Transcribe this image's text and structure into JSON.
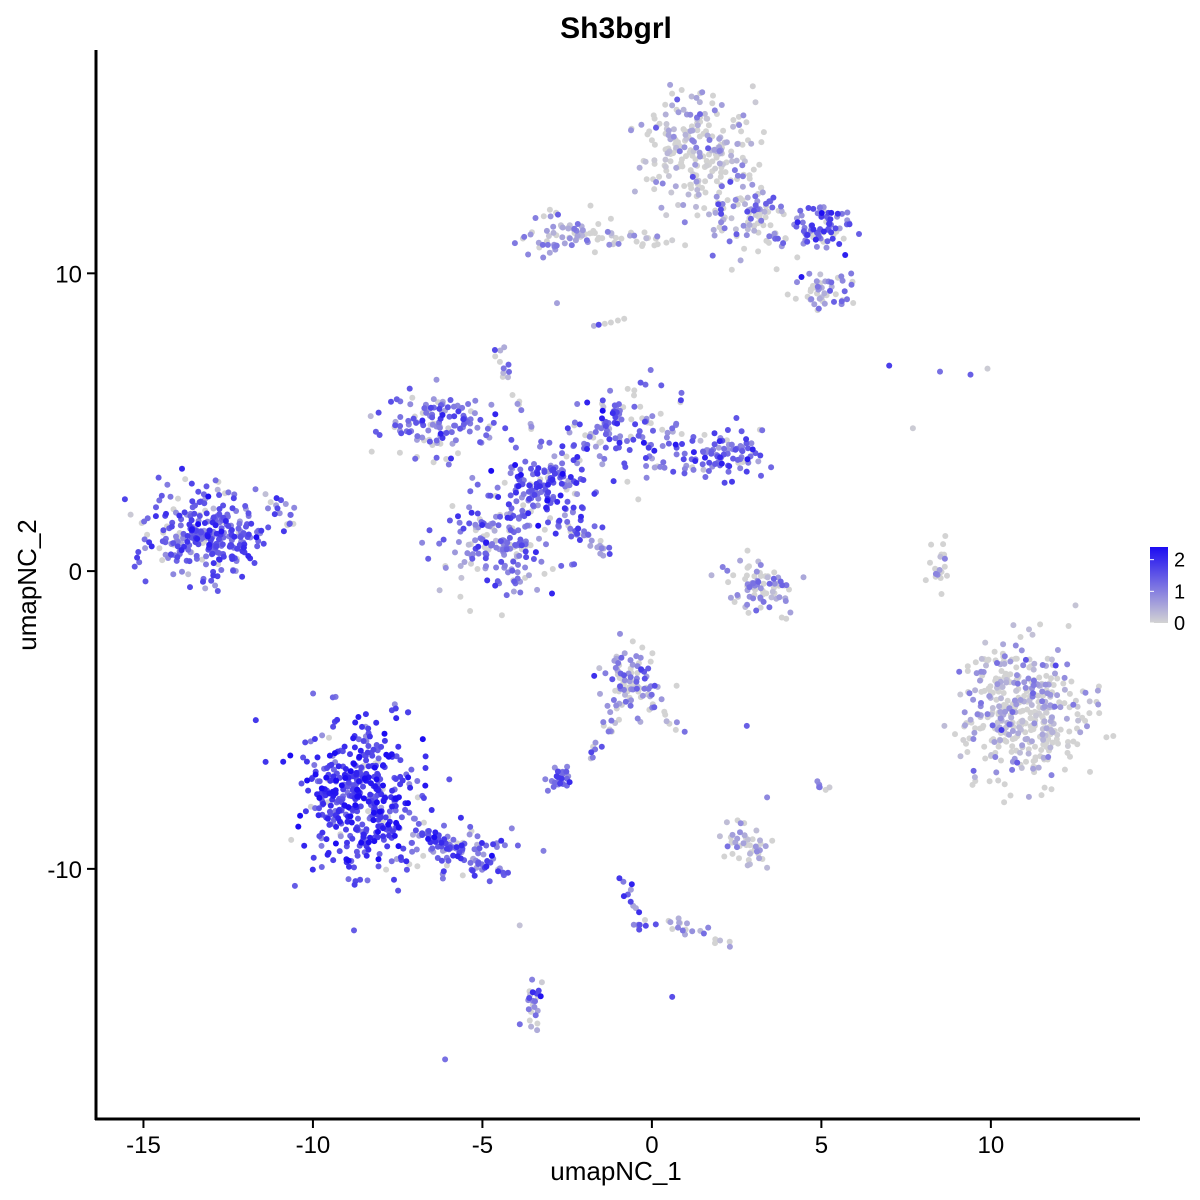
{
  "chart_data": {
    "type": "scatter",
    "title": "Sh3bgrl",
    "xlabel": "umapNC_1",
    "ylabel": "umapNC_2",
    "xlim": [
      -16.4,
      14.4
    ],
    "ylim": [
      -18.4,
      17.5
    ],
    "x_ticks": [
      -15,
      -10,
      -5,
      0,
      5,
      10
    ],
    "x_tick_labels": [
      "-15",
      "-10",
      "-5",
      "0",
      "5",
      "10"
    ],
    "y_ticks": [
      -10,
      0,
      10
    ],
    "y_tick_labels": [
      "-10",
      "0",
      "10"
    ],
    "grid": false,
    "color_scale": {
      "low_color": "#d3d3d3",
      "high_color": "#1c0cf2",
      "min": 0,
      "max": 2.4,
      "legend_ticks": [
        2,
        1,
        0
      ],
      "legend_tick_labels": [
        "2",
        "1",
        "0"
      ],
      "legend_position": "right"
    },
    "point_color": "expression of Sh3bgrl (0 = grey, high = blue)",
    "clusters": [
      {
        "cx": -13.2,
        "cy": 1.2,
        "sx": 1.0,
        "sy": 0.8,
        "n": 300,
        "expr_mean": 1.4
      },
      {
        "cx": -8.6,
        "cy": -7.6,
        "sx": 1.0,
        "sy": 1.4,
        "n": 450,
        "expr_mean": 1.8
      },
      {
        "cx": -5.6,
        "cy": -9.4,
        "sx": 1.0,
        "sy": 0.5,
        "n": 70,
        "expr_mean": 1.3
      },
      {
        "cx": -4.4,
        "cy": 1.1,
        "sx": 1.0,
        "sy": 1.0,
        "n": 200,
        "expr_mean": 1.2
      },
      {
        "cx": -3.1,
        "cy": 2.9,
        "sx": 0.7,
        "sy": 0.8,
        "n": 120,
        "expr_mean": 1.5
      },
      {
        "cx": -6.3,
        "cy": 5.0,
        "sx": 1.0,
        "sy": 0.6,
        "n": 130,
        "expr_mean": 1.2
      },
      {
        "cx": -0.5,
        "cy": 4.6,
        "sx": 0.9,
        "sy": 0.8,
        "n": 110,
        "expr_mean": 1.2
      },
      {
        "cx": 2.0,
        "cy": 3.9,
        "sx": 0.7,
        "sy": 0.5,
        "n": 90,
        "expr_mean": 1.3
      },
      {
        "cx": 1.4,
        "cy": 14.2,
        "sx": 0.9,
        "sy": 1.1,
        "n": 230,
        "expr_mean": 0.3
      },
      {
        "cx": 3.0,
        "cy": 11.8,
        "sx": 0.9,
        "sy": 0.7,
        "n": 110,
        "expr_mean": 0.8
      },
      {
        "cx": 5.0,
        "cy": 11.6,
        "sx": 0.5,
        "sy": 0.4,
        "n": 70,
        "expr_mean": 1.4
      },
      {
        "cx": 5.2,
        "cy": 9.5,
        "sx": 0.6,
        "sy": 0.4,
        "n": 50,
        "expr_mean": 0.8
      },
      {
        "cx": -2.5,
        "cy": 11.3,
        "sx": 0.9,
        "sy": 0.4,
        "n": 60,
        "expr_mean": 0.6
      },
      {
        "cx": 11.0,
        "cy": -4.8,
        "sx": 1.0,
        "sy": 1.3,
        "n": 420,
        "expr_mean": 0.4
      },
      {
        "cx": 3.2,
        "cy": -0.6,
        "sx": 0.6,
        "sy": 0.5,
        "n": 80,
        "expr_mean": 0.7
      },
      {
        "cx": -0.6,
        "cy": -3.6,
        "sx": 0.5,
        "sy": 0.6,
        "n": 90,
        "expr_mean": 0.9
      },
      {
        "cx": -2.7,
        "cy": -6.9,
        "sx": 0.3,
        "sy": 0.2,
        "n": 30,
        "expr_mean": 1.2
      },
      {
        "cx": 2.8,
        "cy": -9.2,
        "sx": 0.4,
        "sy": 0.4,
        "n": 45,
        "expr_mean": 0.5
      },
      {
        "cx": -3.5,
        "cy": -14.6,
        "sx": 0.2,
        "sy": 0.5,
        "n": 25,
        "expr_mean": 1.1
      },
      {
        "cx": 8.4,
        "cy": 0.2,
        "sx": 0.2,
        "sy": 0.5,
        "n": 20,
        "expr_mean": 0.4
      }
    ],
    "trails": [
      {
        "from": [
          -11.3,
          2.6
        ],
        "to": [
          -10.6,
          1.4
        ],
        "n": 15,
        "expr_mean": 1.4
      },
      {
        "from": [
          -7.5,
          -8.5
        ],
        "to": [
          -4.1,
          -10.3
        ],
        "n": 50,
        "expr_mean": 1.4
      },
      {
        "from": [
          -2.7,
          1.7
        ],
        "to": [
          -1.3,
          0.6
        ],
        "n": 30,
        "expr_mean": 1.0
      },
      {
        "from": [
          -4.5,
          7.5
        ],
        "to": [
          -3.3,
          4.0
        ],
        "n": 20,
        "expr_mean": 0.8
      },
      {
        "from": [
          -0.7,
          5.8
        ],
        "to": [
          -3.4,
          2.6
        ],
        "n": 40,
        "expr_mean": 1.3
      },
      {
        "from": [
          -1.0,
          -4.6
        ],
        "to": [
          -1.7,
          -6.2
        ],
        "n": 18,
        "expr_mean": 1.0
      },
      {
        "from": [
          -0.9,
          -10.3
        ],
        "to": [
          -0.2,
          -11.9
        ],
        "n": 18,
        "expr_mean": 1.3
      },
      {
        "from": [
          0.5,
          -11.8
        ],
        "to": [
          2.6,
          -12.6
        ],
        "n": 20,
        "expr_mean": 0.7
      },
      {
        "from": [
          -3.0,
          11.4
        ],
        "to": [
          1.0,
          11.0
        ],
        "n": 35,
        "expr_mean": 0.5
      },
      {
        "from": [
          -0.2,
          8.8
        ],
        "to": [
          -1.7,
          8.2
        ],
        "n": 6,
        "expr_mean": 0.4
      },
      {
        "from": [
          -0.8,
          -3.8
        ],
        "to": [
          1.1,
          -5.6
        ],
        "n": 18,
        "expr_mean": 0.6
      },
      {
        "from": [
          5.1,
          -7.2
        ],
        "to": [
          5.0,
          -7.5
        ],
        "n": 6,
        "expr_mean": 0.8
      }
    ],
    "singletons": [
      {
        "x": 7.0,
        "y": 6.9,
        "expr": 1.8
      },
      {
        "x": 8.5,
        "y": 6.7,
        "expr": 1.2
      },
      {
        "x": 9.4,
        "y": 6.6,
        "expr": 1.4
      },
      {
        "x": 9.9,
        "y": 6.8,
        "expr": 0.1
      },
      {
        "x": 7.7,
        "y": 4.8,
        "expr": 0.1
      },
      {
        "x": -2.8,
        "y": 9.0,
        "expr": 0.6
      },
      {
        "x": 2.8,
        "y": -5.2,
        "expr": 1.4
      },
      {
        "x": 3.4,
        "y": -7.6,
        "expr": 0.9
      },
      {
        "x": -3.9,
        "y": -11.9,
        "expr": 0.2
      },
      {
        "x": -6.1,
        "y": -16.4,
        "expr": 1.2
      },
      {
        "x": 0.6,
        "y": -14.3,
        "expr": 1.6
      },
      {
        "x": 2.1,
        "y": 11.8,
        "expr": 0.4
      }
    ]
  }
}
